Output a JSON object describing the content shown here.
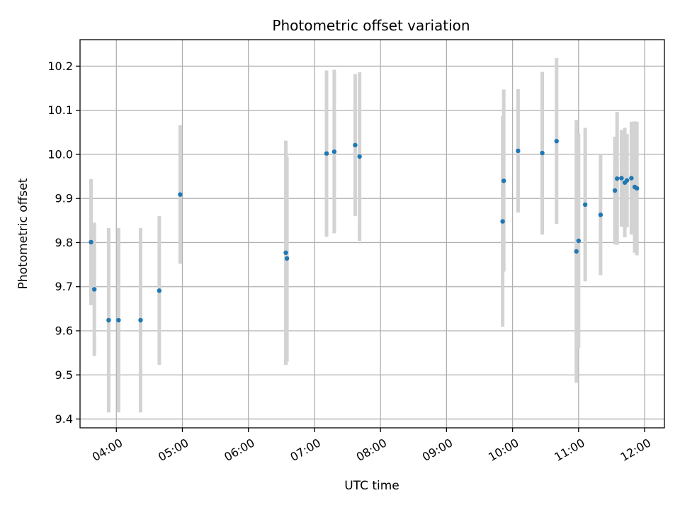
{
  "chart_data": {
    "type": "scatter",
    "title": "Photometric offset variation",
    "xlabel": "UTC time",
    "ylabel": "Photometric offset",
    "grid": true,
    "xlim": [
      "03:27",
      "12:18"
    ],
    "ylim": [
      9.38,
      10.26
    ],
    "x_ticks": [
      "04:00",
      "05:00",
      "06:00",
      "07:00",
      "08:00",
      "09:00",
      "10:00",
      "11:00",
      "12:00"
    ],
    "y_ticks": [
      9.4,
      9.5,
      9.6,
      9.7,
      9.8,
      9.9,
      10.0,
      10.1,
      10.2
    ],
    "y_tick_labels": [
      "9.4",
      "9.5",
      "9.6",
      "9.7",
      "9.8",
      "9.9",
      "10.0",
      "10.1",
      "10.2"
    ],
    "colors": {
      "point": "#1f77b4",
      "errorbar": "#d3d3d3",
      "grid": "#b0b0b0"
    },
    "points": [
      {
        "x": "03:37",
        "y": 9.801,
        "ylow": 9.658,
        "yhigh": 9.944
      },
      {
        "x": "03:40",
        "y": 9.694,
        "ylow": 9.543,
        "yhigh": 9.845
      },
      {
        "x": "03:53",
        "y": 9.624,
        "ylow": 9.415,
        "yhigh": 9.833
      },
      {
        "x": "04:02",
        "y": 9.624,
        "ylow": 9.415,
        "yhigh": 9.833
      },
      {
        "x": "04:22",
        "y": 9.624,
        "ylow": 9.415,
        "yhigh": 9.833
      },
      {
        "x": "04:39",
        "y": 9.691,
        "ylow": 9.523,
        "yhigh": 9.86
      },
      {
        "x": "04:58",
        "y": 9.909,
        "ylow": 9.752,
        "yhigh": 10.066
      },
      {
        "x": "06:34",
        "y": 9.777,
        "ylow": 9.523,
        "yhigh": 10.031
      },
      {
        "x": "06:35",
        "y": 9.764,
        "ylow": 9.53,
        "yhigh": 9.995
      },
      {
        "x": "07:11",
        "y": 10.002,
        "ylow": 9.813,
        "yhigh": 10.19
      },
      {
        "x": "07:18",
        "y": 10.006,
        "ylow": 9.821,
        "yhigh": 10.192
      },
      {
        "x": "07:37",
        "y": 10.021,
        "ylow": 9.86,
        "yhigh": 10.182
      },
      {
        "x": "07:41",
        "y": 9.995,
        "ylow": 9.804,
        "yhigh": 10.186
      },
      {
        "x": "09:51",
        "y": 9.848,
        "ylow": 9.609,
        "yhigh": 10.086
      },
      {
        "x": "09:52",
        "y": 9.94,
        "ylow": 9.734,
        "yhigh": 10.147
      },
      {
        "x": "10:05",
        "y": 10.008,
        "ylow": 9.868,
        "yhigh": 10.148
      },
      {
        "x": "10:27",
        "y": 10.003,
        "ylow": 9.818,
        "yhigh": 10.187
      },
      {
        "x": "10:40",
        "y": 10.03,
        "ylow": 9.842,
        "yhigh": 10.218
      },
      {
        "x": "10:58",
        "y": 9.78,
        "ylow": 9.482,
        "yhigh": 10.078
      },
      {
        "x": "11:00",
        "y": 9.804,
        "ylow": 9.561,
        "yhigh": 10.047
      },
      {
        "x": "11:06",
        "y": 9.886,
        "ylow": 9.712,
        "yhigh": 10.06
      },
      {
        "x": "11:20",
        "y": 9.863,
        "ylow": 9.726,
        "yhigh": 10.0
      },
      {
        "x": "11:33",
        "y": 9.918,
        "ylow": 9.796,
        "yhigh": 10.04
      },
      {
        "x": "11:35",
        "y": 9.945,
        "ylow": 9.795,
        "yhigh": 10.096
      },
      {
        "x": "11:39",
        "y": 9.946,
        "ylow": 9.836,
        "yhigh": 10.055
      },
      {
        "x": "11:42",
        "y": 9.936,
        "ylow": 9.812,
        "yhigh": 10.06
      },
      {
        "x": "11:44",
        "y": 9.941,
        "ylow": 9.835,
        "yhigh": 10.046
      },
      {
        "x": "11:48",
        "y": 9.946,
        "ylow": 9.818,
        "yhigh": 10.074
      },
      {
        "x": "11:51",
        "y": 9.926,
        "ylow": 9.777,
        "yhigh": 10.075
      },
      {
        "x": "11:53",
        "y": 9.923,
        "ylow": 9.771,
        "yhigh": 10.074
      }
    ]
  }
}
